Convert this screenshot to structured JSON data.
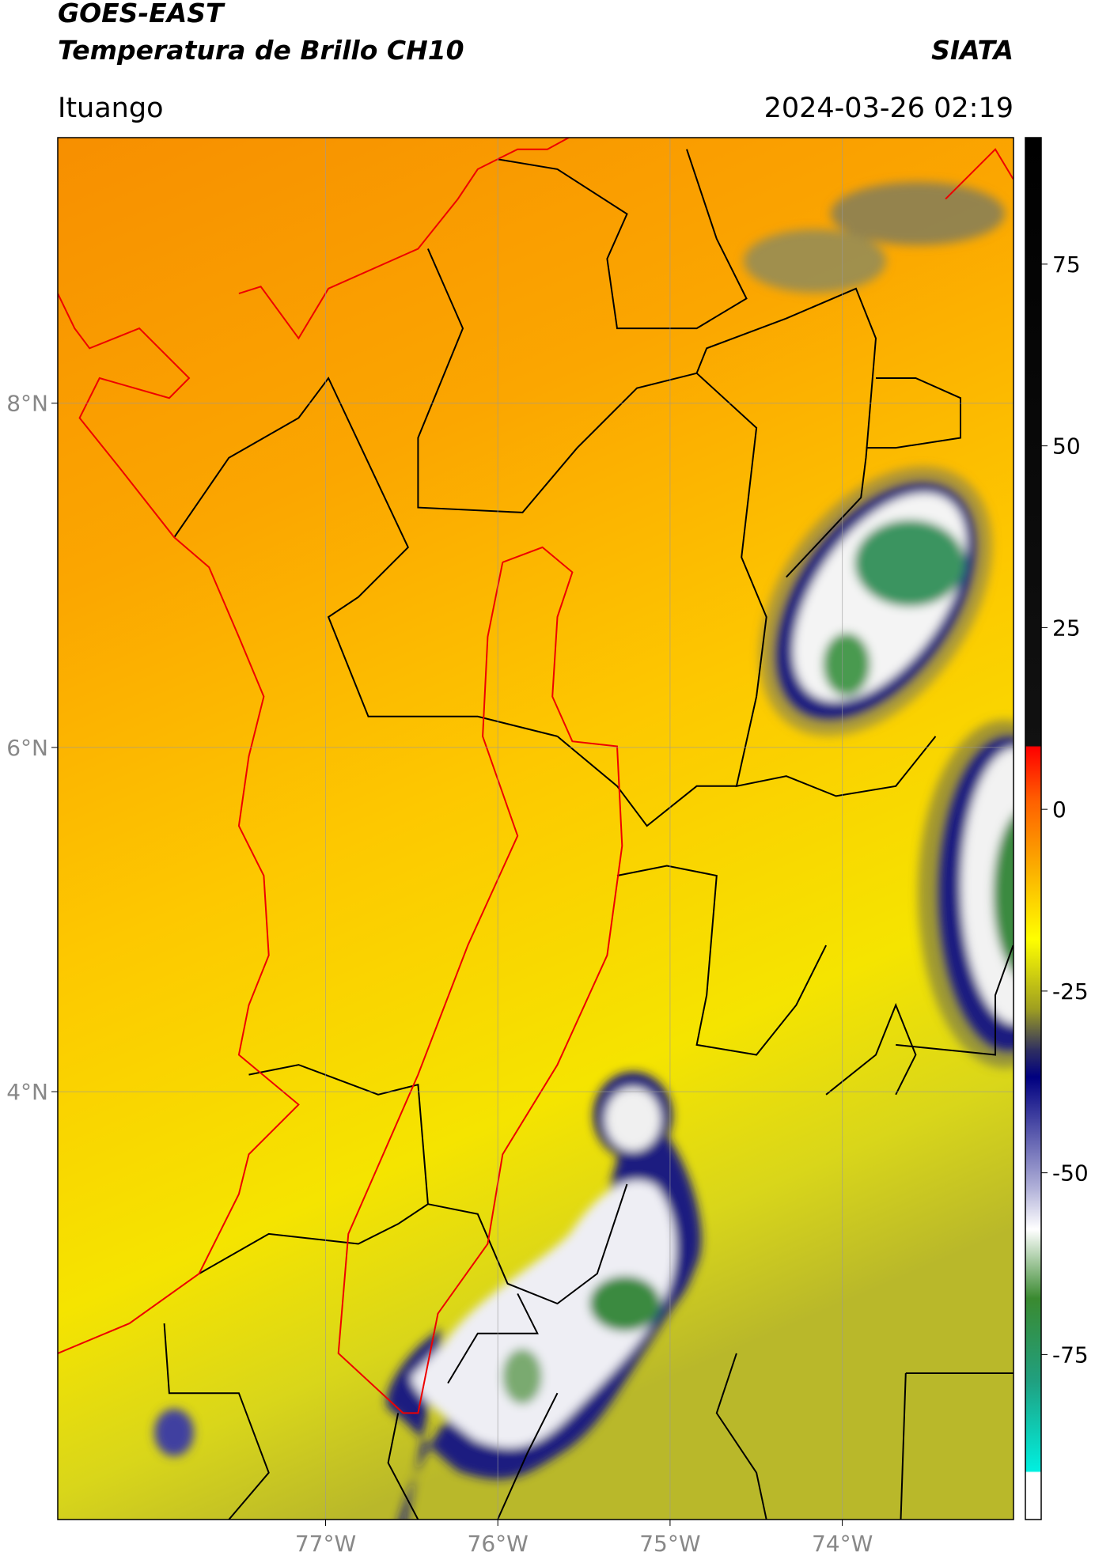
{
  "header": {
    "title": "GOES-EAST",
    "subtitle": "Temperatura de Brillo CH10",
    "agency": "SIATA",
    "region": "Ituango",
    "datetime": "2024-03-26 02:19"
  },
  "map": {
    "lonlim": [
      -78.555,
      -73.006
    ],
    "latlim": [
      1.514,
      9.543
    ],
    "lonticks": [
      {
        "value": -77,
        "label": "77°W"
      },
      {
        "value": -76,
        "label": "76°W"
      },
      {
        "value": -75,
        "label": "75°W"
      },
      {
        "value": -74,
        "label": "74°W"
      }
    ],
    "latticks": [
      {
        "value": 8,
        "label": "8°N"
      },
      {
        "value": 6,
        "label": "6°N"
      },
      {
        "value": 4,
        "label": "4°N"
      }
    ]
  },
  "colorbar": {
    "lim": [
      -97.7,
      92.4
    ],
    "ticks": [
      75,
      50,
      25,
      0,
      -25,
      -50,
      -75
    ]
  }
}
